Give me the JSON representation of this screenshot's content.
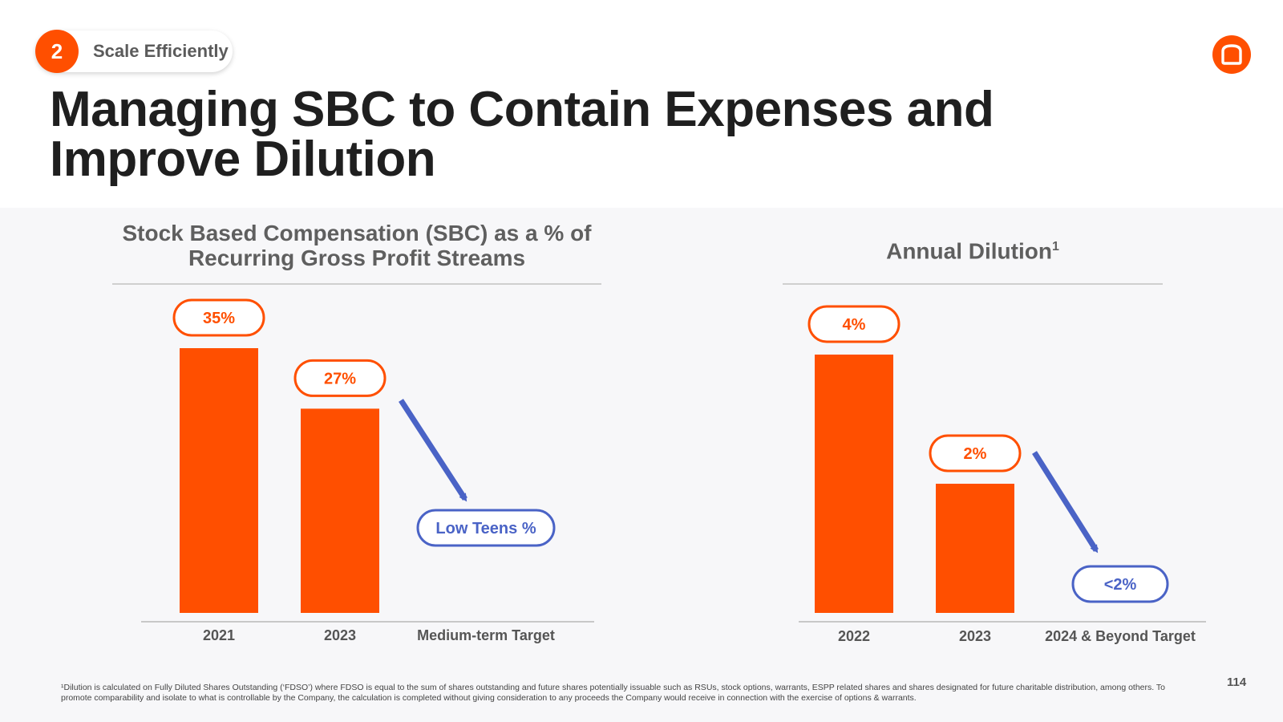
{
  "section": {
    "number": "2",
    "label": "Scale Efficiently"
  },
  "title": {
    "line1": "Managing SBC to Contain Expenses and",
    "line2": "Improve Dilution"
  },
  "colors": {
    "accent": "#ff4f00",
    "arrow": "#4a63c6",
    "axis_text": "#555555"
  },
  "chart_data": [
    {
      "type": "bar",
      "title_line1": "Stock Based Compensation (SBC) as a % of",
      "title_line2": "Recurring Gross Profit Streams",
      "categories": [
        "2021",
        "2023",
        "Medium-term Target"
      ],
      "values": [
        35,
        27,
        null
      ],
      "labels": [
        "35%",
        "27%"
      ],
      "target_label": "Low Teens %",
      "unit": "%",
      "ylim": [
        0,
        35
      ]
    },
    {
      "type": "bar",
      "title": "Annual Dilution",
      "title_sup": "1",
      "categories": [
        "2022",
        "2023",
        "2024 & Beyond Target"
      ],
      "values": [
        4,
        2,
        null
      ],
      "labels": [
        "4%",
        "2%"
      ],
      "target_label": "<2%",
      "unit": "%",
      "ylim": [
        0,
        4
      ]
    }
  ],
  "footnote": {
    "line1": "¹Dilution is calculated on Fully Diluted Shares Outstanding (‘FDSO’) where FDSO is equal to the sum of shares outstanding and future shares potentially issuable such as RSUs, stock options, warrants, ESPP related shares and shares designated for future charitable distribution, among others. To",
    "line2": "promote comparability and isolate to what is controllable by the Company, the calculation is completed without giving consideration to any proceeds the Company would receive in connection with the exercise of options & warrants."
  },
  "page_number": "114"
}
